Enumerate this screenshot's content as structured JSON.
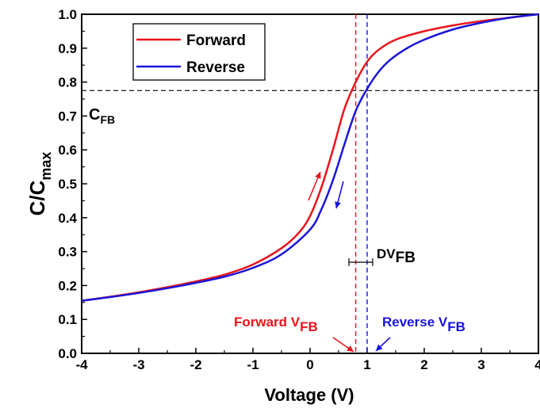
{
  "chart_data": {
    "type": "line",
    "xlabel": "Voltage (V)",
    "ylabel_main": "C/C",
    "ylabel_sub": "max",
    "xlim": [
      -4,
      4
    ],
    "ylim": [
      0,
      1.0
    ],
    "x_ticks": [
      "-4",
      "-3",
      "-2",
      "-1",
      "0",
      "1",
      "2",
      "3",
      "4"
    ],
    "y_ticks": [
      "0.0",
      "0.1",
      "0.2",
      "0.3",
      "0.4",
      "0.5",
      "0.6",
      "0.7",
      "0.8",
      "0.9",
      "1.0"
    ],
    "grid": false,
    "legend_position": "top-left",
    "colors": {
      "forward": "#e8141b",
      "reverse": "#1a14d9"
    },
    "series": [
      {
        "name": "Forward",
        "color": "#e8141b",
        "x": [
          -4,
          -3.5,
          -3,
          -2.5,
          -2,
          -1.5,
          -1,
          -0.5,
          -0.2,
          0,
          0.2,
          0.4,
          0.6,
          0.8,
          1.0,
          1.2,
          1.5,
          2,
          2.5,
          3,
          3.5,
          4
        ],
        "y": [
          0.155,
          0.167,
          0.18,
          0.195,
          0.212,
          0.232,
          0.262,
          0.31,
          0.355,
          0.405,
          0.49,
          0.6,
          0.72,
          0.8,
          0.86,
          0.895,
          0.925,
          0.95,
          0.967,
          0.98,
          0.99,
          1.0
        ]
      },
      {
        "name": "Reverse",
        "color": "#1a14d9",
        "x": [
          -4,
          -3.5,
          -3,
          -2.5,
          -2,
          -1.5,
          -1,
          -0.5,
          0,
          0.2,
          0.4,
          0.6,
          0.8,
          1.0,
          1.2,
          1.4,
          1.7,
          2,
          2.5,
          3,
          3.5,
          4
        ],
        "y": [
          0.155,
          0.166,
          0.178,
          0.192,
          0.208,
          0.226,
          0.252,
          0.292,
          0.365,
          0.425,
          0.51,
          0.615,
          0.715,
          0.78,
          0.83,
          0.865,
          0.9,
          0.925,
          0.955,
          0.975,
          0.99,
          1.0
        ]
      }
    ],
    "annotations": {
      "cfb_main": "C",
      "cfb_sub": "FB",
      "cfb_value": 0.775,
      "dv_main": "DV",
      "dv_sub": "FB",
      "forward_vfb_main": "Forward V",
      "forward_vfb_sub": "FB",
      "forward_vfb_value": 0.8,
      "reverse_vfb_main": "Reverse V",
      "reverse_vfb_sub": "FB",
      "reverse_vfb_value": 1.0
    }
  }
}
